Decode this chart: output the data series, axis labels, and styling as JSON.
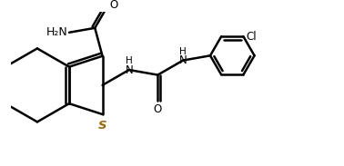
{
  "background_color": "#ffffff",
  "line_color": "#000000",
  "label_color": "#000000",
  "sulfur_color": "#996600",
  "line_width": 1.8,
  "font_size": 8.5,
  "figsize": [
    3.78,
    1.83
  ],
  "dpi": 100,
  "xlim": [
    0,
    10.5
  ],
  "ylim": [
    0,
    5.0
  ]
}
